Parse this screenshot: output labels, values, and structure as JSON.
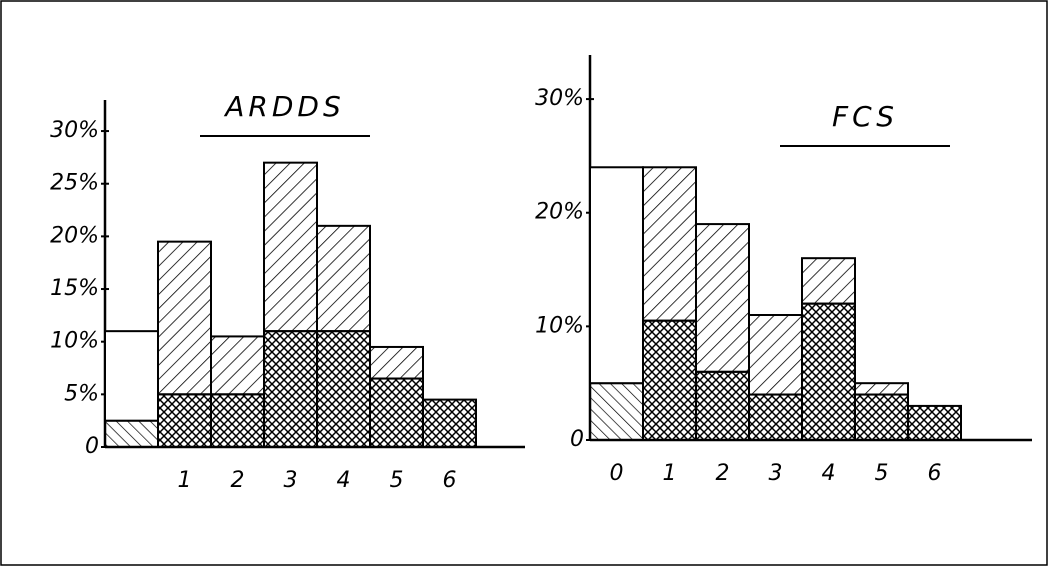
{
  "chart_data": [
    {
      "type": "bar",
      "stacked": true,
      "title": "ARDDS",
      "categories": [
        null,
        "1",
        "2",
        "3",
        "4",
        "5",
        "6"
      ],
      "series": [
        {
          "color": "#000000",
          "values": [
            2.5,
            5,
            5,
            11,
            11,
            6.5,
            4.5
          ]
        },
        {
          "color": "#000000",
          "values": [
            8.5,
            14.5,
            5.5,
            16,
            10,
            3,
            0
          ]
        }
      ],
      "ylim": [
        0,
        32
      ],
      "yticks": [
        0,
        {
          "value": 5,
          "label": "5%"
        },
        {
          "value": 10,
          "label": "10%"
        },
        {
          "value": 15,
          "label": "15%"
        },
        {
          "value": 20,
          "label": "20%"
        },
        {
          "value": 25,
          "label": "25%"
        },
        {
          "value": 30,
          "label": "30%"
        }
      ]
    },
    {
      "type": "bar",
      "stacked": true,
      "title": "FCS",
      "categories": [
        "0",
        "1",
        "2",
        "3",
        "4",
        "5",
        "6"
      ],
      "series": [
        {
          "color": "#000000",
          "values": [
            5,
            10.5,
            6,
            4,
            12,
            4,
            3
          ]
        },
        {
          "color": "#000000",
          "values": [
            19,
            13.5,
            13,
            7,
            4,
            1,
            0
          ]
        }
      ],
      "ylim": [
        0,
        33
      ],
      "yticks": [
        0,
        {
          "value": 10,
          "label": "10%"
        },
        {
          "value": 20,
          "label": "20%"
        },
        {
          "value": 30,
          "label": "30%"
        }
      ]
    }
  ]
}
